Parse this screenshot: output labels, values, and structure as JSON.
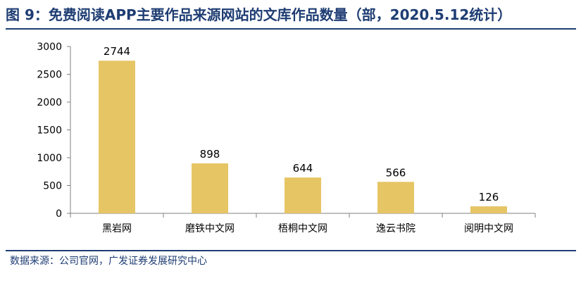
{
  "title": "图 9：免费阅读APP主要作品来源网站的文库作品数量（部，2020.5.12统计）",
  "source": "数据来源：公司官网，广发证券发展研究中心",
  "colors": {
    "bar": "#e6c565",
    "accent": "#1e3d73",
    "axis": "#808080",
    "text": "#000000"
  },
  "chart_data": {
    "type": "bar",
    "title": "图 9：免费阅读APP主要作品来源网站的文库作品数量（部，2020.5.12统计）",
    "xlabel": "",
    "ylabel": "",
    "categories": [
      "黑岩网",
      "磨铁中文网",
      "梧桐中文网",
      "逸云书院",
      "阅明中文网"
    ],
    "values": [
      2744,
      898,
      644,
      566,
      126
    ],
    "ylim": [
      0,
      3000
    ],
    "yticks": [
      0,
      500,
      1000,
      1500,
      2000,
      2500,
      3000
    ],
    "data_labels": true,
    "grid": false,
    "legend": "none"
  }
}
